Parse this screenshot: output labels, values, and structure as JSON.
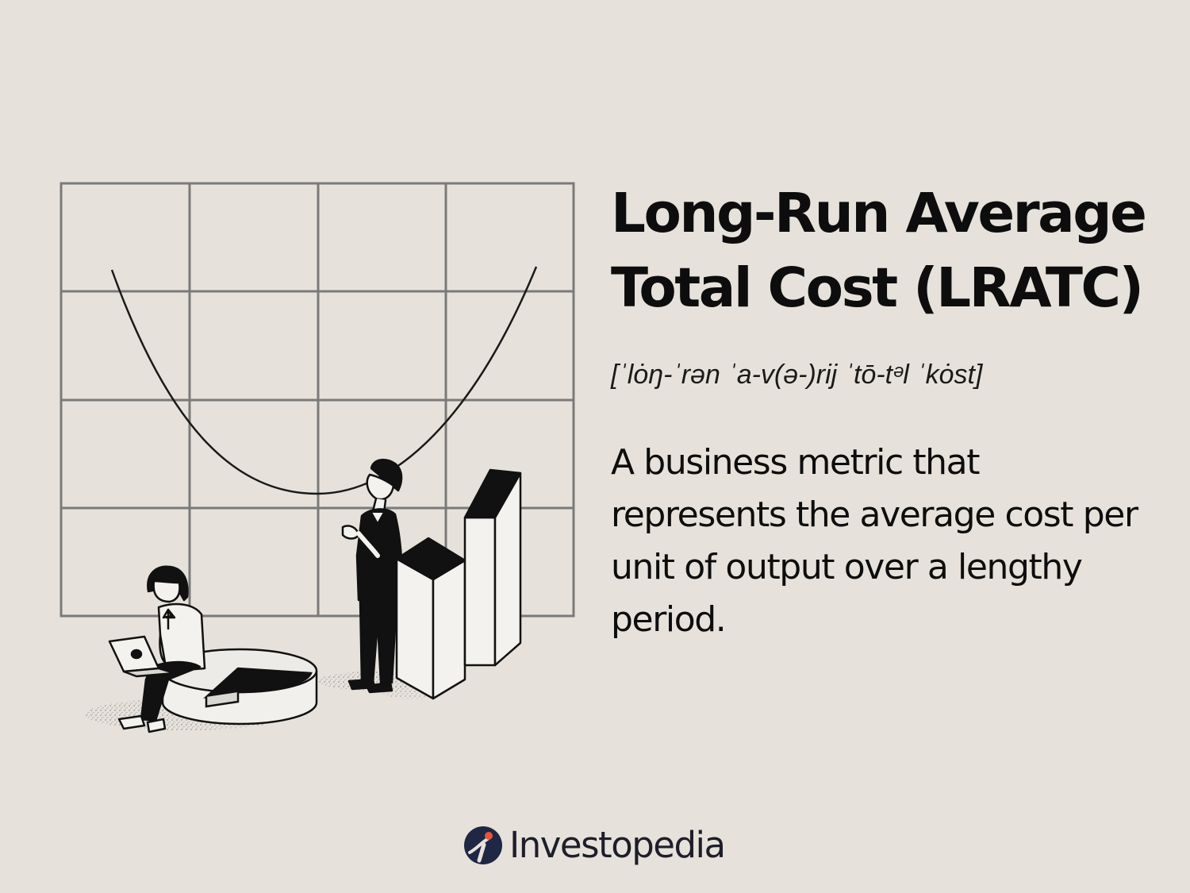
{
  "title": "Long-Run Average Total Cost (LRATC)",
  "pronunciation": "[ˈlȯŋ-ˈrən ˈa-v(ə-)rij ˈtō-tᵊl ˈkȯst]",
  "definition": "A business metric that represents the average cost per unit of output over a lengthy period.",
  "brand": {
    "name": "Investopedia",
    "logo_icon": "investopedia-logo-icon"
  },
  "illustration": {
    "description_icon": "cost-curve-illustration",
    "curve": "u-shaped",
    "grid_rows": 4,
    "grid_cols": 4
  },
  "colors": {
    "background": "#e6e2db",
    "text": "#0d0d0d",
    "grid": "#7a7a7a",
    "logo_navy": "#1e2744",
    "logo_orange": "#e8563a"
  }
}
